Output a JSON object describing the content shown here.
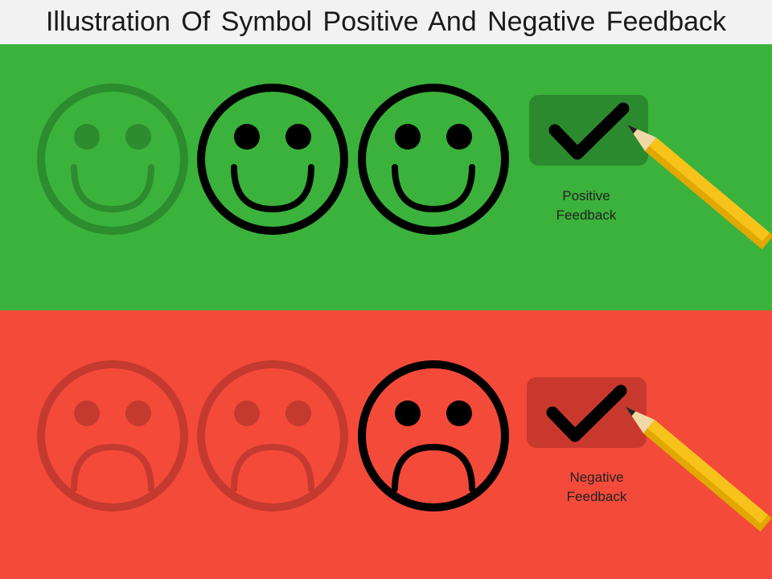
{
  "title": "Illustration Of Symbol Positive And Negative Feedback",
  "colors": {
    "title_bg": "#f2f2f2",
    "positive_bg": "#3bb23b",
    "positive_faded": "#2c8c2e",
    "positive_checkbox": "#2b8a2d",
    "negative_bg": "#f44a3a",
    "negative_faded": "#c53a2e",
    "negative_checkbox": "#c9382d",
    "face_active": "#000000",
    "pencil_body": "#f7c31b",
    "pencil_shade": "#e0a800",
    "pencil_wood": "#f0d9a6"
  },
  "positive": {
    "caption_line1": "Positive",
    "caption_line2": "Feedback",
    "faces": [
      {
        "expression": "smile",
        "state": "faded"
      },
      {
        "expression": "smile",
        "state": "active"
      },
      {
        "expression": "smile",
        "state": "active"
      }
    ],
    "icons": [
      "smiley-face-icon",
      "checkmark-icon",
      "pencil-icon"
    ]
  },
  "negative": {
    "caption_line1": "Negative",
    "caption_line2": "Feedback",
    "faces": [
      {
        "expression": "frown",
        "state": "faded"
      },
      {
        "expression": "frown",
        "state": "faded"
      },
      {
        "expression": "frown",
        "state": "active"
      }
    ],
    "icons": [
      "sad-face-icon",
      "checkmark-icon",
      "pencil-icon"
    ]
  }
}
